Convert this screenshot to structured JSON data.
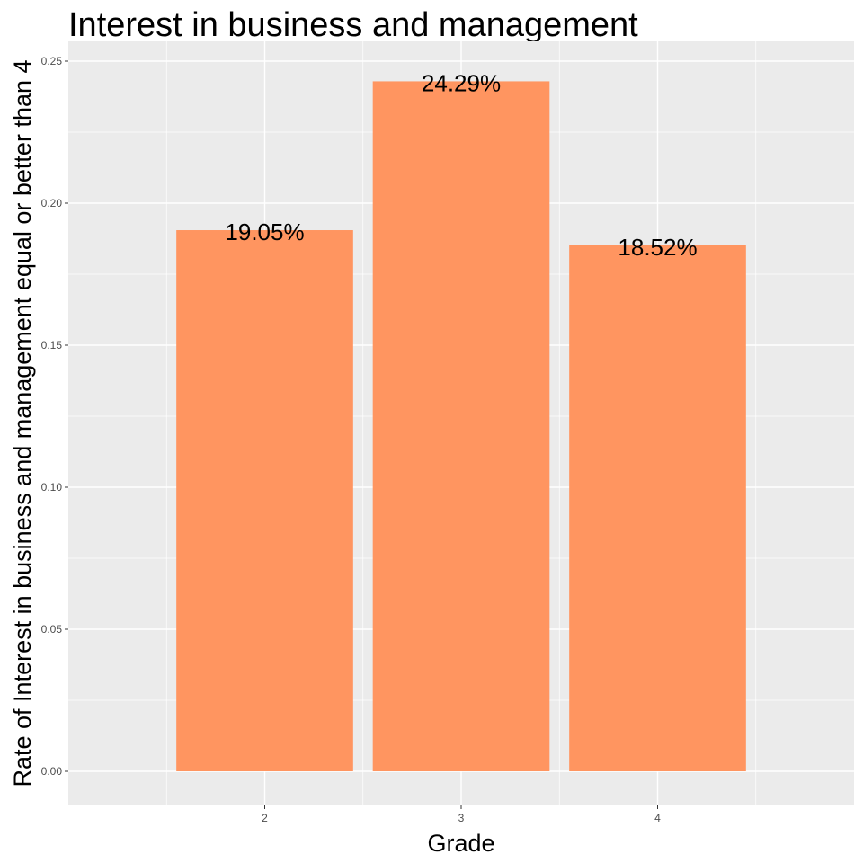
{
  "chart_data": {
    "type": "bar",
    "title": "Interest in business and management",
    "xlabel": "Grade",
    "ylabel": "Rate of Interest in business and management equal or better than 4",
    "categories": [
      "2",
      "3",
      "4"
    ],
    "values": [
      0.1905,
      0.2429,
      0.1852
    ],
    "data_labels": [
      "19.05%",
      "24.29%",
      "18.52%"
    ],
    "ylim": [
      0,
      0.25
    ],
    "y_ticks": [
      0.0,
      0.05,
      0.1,
      0.15,
      0.2,
      0.25
    ],
    "y_tick_labels": [
      "0.00",
      "0.05",
      "0.10",
      "0.15",
      "0.20",
      "0.25"
    ],
    "grid": true,
    "bar_color": "#FF9560",
    "panel_color": "#EBEBEB",
    "grid_color": "#FFFFFF"
  }
}
